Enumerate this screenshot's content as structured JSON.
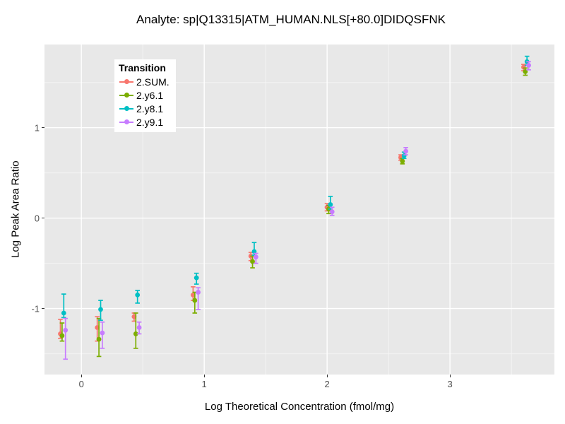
{
  "chart_data": {
    "type": "scatter",
    "title": "Analyte: sp|Q13315|ATM_HUMAN.NLS[+80.0]DIDQSFNK",
    "xlabel": "Log Theoretical Concentration (fmol/mg)",
    "ylabel": "Log Peak Area Ratio",
    "legend_title": "Transition",
    "legend_position": "inside-top-left",
    "grid": true,
    "panel_background": "#E8E8E8",
    "grid_major_color": "#FFFFFF",
    "grid_minor_color": "#F4F4F4",
    "tick_label_color": "#4D4D4D",
    "xlim": [
      -0.3,
      3.85
    ],
    "ylim": [
      -1.73,
      1.92
    ],
    "x_ticks": [
      0,
      1,
      2,
      3
    ],
    "y_ticks": [
      -1,
      0,
      1
    ],
    "x_minor": [
      0.5,
      1.5,
      2.5,
      3.5
    ],
    "y_minor": [
      -1.5,
      -0.5,
      0.5,
      1.5
    ],
    "x": [
      -0.15,
      0.15,
      0.45,
      0.93,
      1.4,
      2.02,
      2.62,
      3.62
    ],
    "series": [
      {
        "name": "2.SUM.",
        "color": "#F8766D",
        "values": [
          -1.28,
          -1.21,
          -1.09,
          -0.85,
          -0.42,
          0.12,
          0.67,
          1.67
        ],
        "ymin": [
          -1.33,
          -1.36,
          -1.14,
          -0.91,
          -0.47,
          0.08,
          0.64,
          1.63
        ],
        "ymax": [
          -1.12,
          -1.09,
          -1.05,
          -0.76,
          -0.38,
          0.16,
          0.7,
          1.7
        ]
      },
      {
        "name": "2.y6.1",
        "color": "#7CAE00",
        "values": [
          -1.3,
          -1.34,
          -1.28,
          -0.91,
          -0.48,
          0.1,
          0.63,
          1.62
        ],
        "ymin": [
          -1.36,
          -1.53,
          -1.44,
          -1.05,
          -0.55,
          0.05,
          0.6,
          1.58
        ],
        "ymax": [
          -1.16,
          -1.11,
          -1.05,
          -0.82,
          -0.42,
          0.14,
          0.66,
          1.66
        ]
      },
      {
        "name": "2.y8.1",
        "color": "#00BFC4",
        "values": [
          -1.05,
          -1.01,
          -0.85,
          -0.66,
          -0.37,
          0.15,
          0.69,
          1.73
        ],
        "ymin": [
          -1.1,
          -1.13,
          -0.94,
          -0.73,
          -0.41,
          0.1,
          0.66,
          1.69
        ],
        "ymax": [
          -0.84,
          -0.91,
          -0.8,
          -0.61,
          -0.27,
          0.24,
          0.73,
          1.79
        ]
      },
      {
        "name": "2.y9.1",
        "color": "#C77CFF",
        "values": [
          -1.24,
          -1.27,
          -1.21,
          -0.82,
          -0.43,
          0.07,
          0.74,
          1.69
        ],
        "ymin": [
          -1.56,
          -1.44,
          -1.28,
          -1.01,
          -0.5,
          0.03,
          0.7,
          1.64
        ],
        "ymax": [
          -1.11,
          -1.15,
          -1.15,
          -0.77,
          -0.39,
          0.12,
          0.78,
          1.73
        ]
      }
    ]
  }
}
